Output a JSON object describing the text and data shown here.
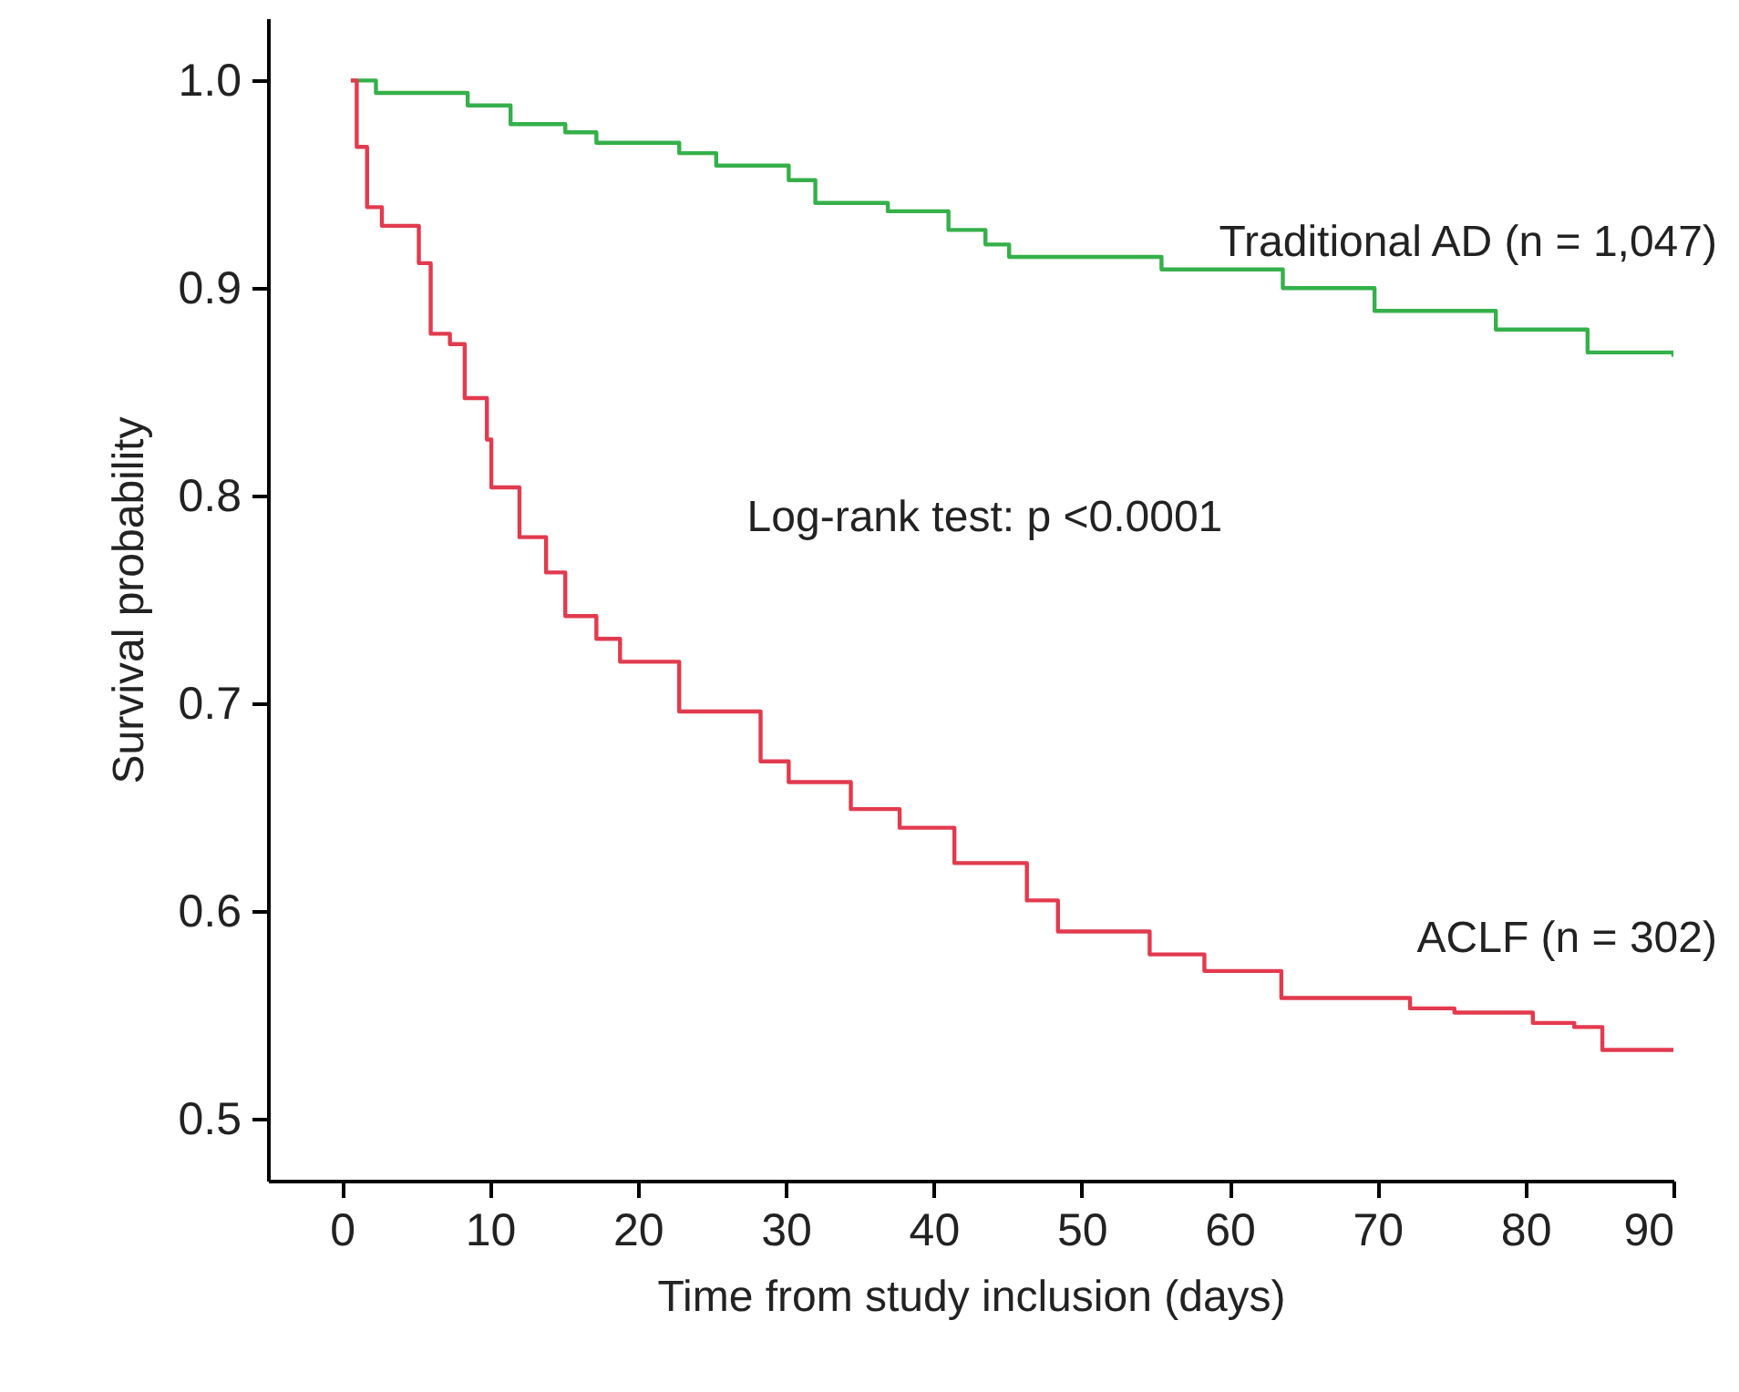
{
  "chart_data": {
    "type": "step",
    "xlabel": "Time from study inclusion (days)",
    "ylabel": "Survival probability",
    "xlim": [
      -5,
      90
    ],
    "xticks": [
      0,
      10,
      20,
      30,
      40,
      50,
      60,
      70,
      80,
      90
    ],
    "ylim": [
      0.47,
      1.03
    ],
    "yticks": [
      0.5,
      0.6,
      0.7,
      0.8,
      0.9,
      {
        "value": 1,
        "label": "1.0"
      }
    ],
    "grid": false,
    "annotations": [
      "Log-rank test: p <0.0001"
    ],
    "series": [
      {
        "name": "Traditional AD (n = 1,047)",
        "color": "#35b04a",
        "x": [
          0.6,
          2.3,
          8.5,
          11.4,
          15.1,
          17.2,
          22.8,
          25.3,
          30.2,
          32.0,
          36.9,
          41.0,
          43.5,
          45.1,
          55.4,
          63.6,
          69.8,
          78.0,
          84.2,
          90
        ],
        "values": [
          1.0,
          0.994,
          0.988,
          0.979,
          0.975,
          0.97,
          0.965,
          0.959,
          0.952,
          0.941,
          0.937,
          0.928,
          0.921,
          0.915,
          0.909,
          0.9,
          0.889,
          0.88,
          0.869,
          0.867
        ]
      },
      {
        "name": "ACLF (n = 302)",
        "color": "#e23a4e",
        "x": [
          0.6,
          1.0,
          1.7,
          2.7,
          5.2,
          6.0,
          7.3,
          8.3,
          9.8,
          10.1,
          12.0,
          13.8,
          15.1,
          17.2,
          18.8,
          22.8,
          28.3,
          30.2,
          34.4,
          37.7,
          41.4,
          46.3,
          48.4,
          54.6,
          58.3,
          63.5,
          72.2,
          75.2,
          80.5,
          83.3,
          85.2,
          90
        ],
        "values": [
          1.0,
          0.968,
          0.939,
          0.93,
          0.912,
          0.878,
          0.873,
          0.847,
          0.827,
          0.804,
          0.78,
          0.763,
          0.742,
          0.731,
          0.72,
          0.696,
          0.672,
          0.662,
          0.649,
          0.64,
          0.623,
          0.605,
          0.59,
          0.579,
          0.571,
          0.558,
          0.553,
          0.551,
          0.546,
          0.544,
          0.533,
          0.532
        ]
      }
    ]
  }
}
